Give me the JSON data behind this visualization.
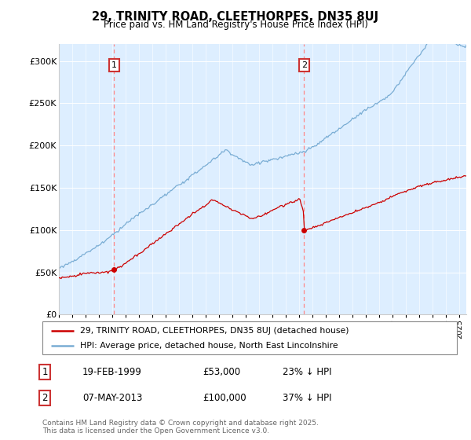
{
  "title": "29, TRINITY ROAD, CLEETHORPES, DN35 8UJ",
  "subtitle": "Price paid vs. HM Land Registry's House Price Index (HPI)",
  "legend_line1": "29, TRINITY ROAD, CLEETHORPES, DN35 8UJ (detached house)",
  "legend_line2": "HPI: Average price, detached house, North East Lincolnshire",
  "annotation1_date": "19-FEB-1999",
  "annotation1_price": "£53,000",
  "annotation1_hpi": "23% ↓ HPI",
  "annotation1_year": 1999.13,
  "annotation1_value": 53000,
  "annotation2_date": "07-MAY-2013",
  "annotation2_price": "£100,000",
  "annotation2_hpi": "37% ↓ HPI",
  "annotation2_year": 2013.35,
  "annotation2_value": 100000,
  "footer": "Contains HM Land Registry data © Crown copyright and database right 2025.\nThis data is licensed under the Open Government Licence v3.0.",
  "price_color": "#cc0000",
  "hpi_color": "#7aadd4",
  "vline_color": "#ff8888",
  "bg_color": "#ddeeff",
  "ylim": [
    0,
    320000
  ],
  "yticks": [
    0,
    50000,
    100000,
    150000,
    200000,
    250000,
    300000
  ],
  "ytick_labels": [
    "£0",
    "£50K",
    "£100K",
    "£150K",
    "£200K",
    "£250K",
    "£300K"
  ],
  "xmin": 1995.0,
  "xmax": 2025.5,
  "ann_box_color": "#cc3333"
}
